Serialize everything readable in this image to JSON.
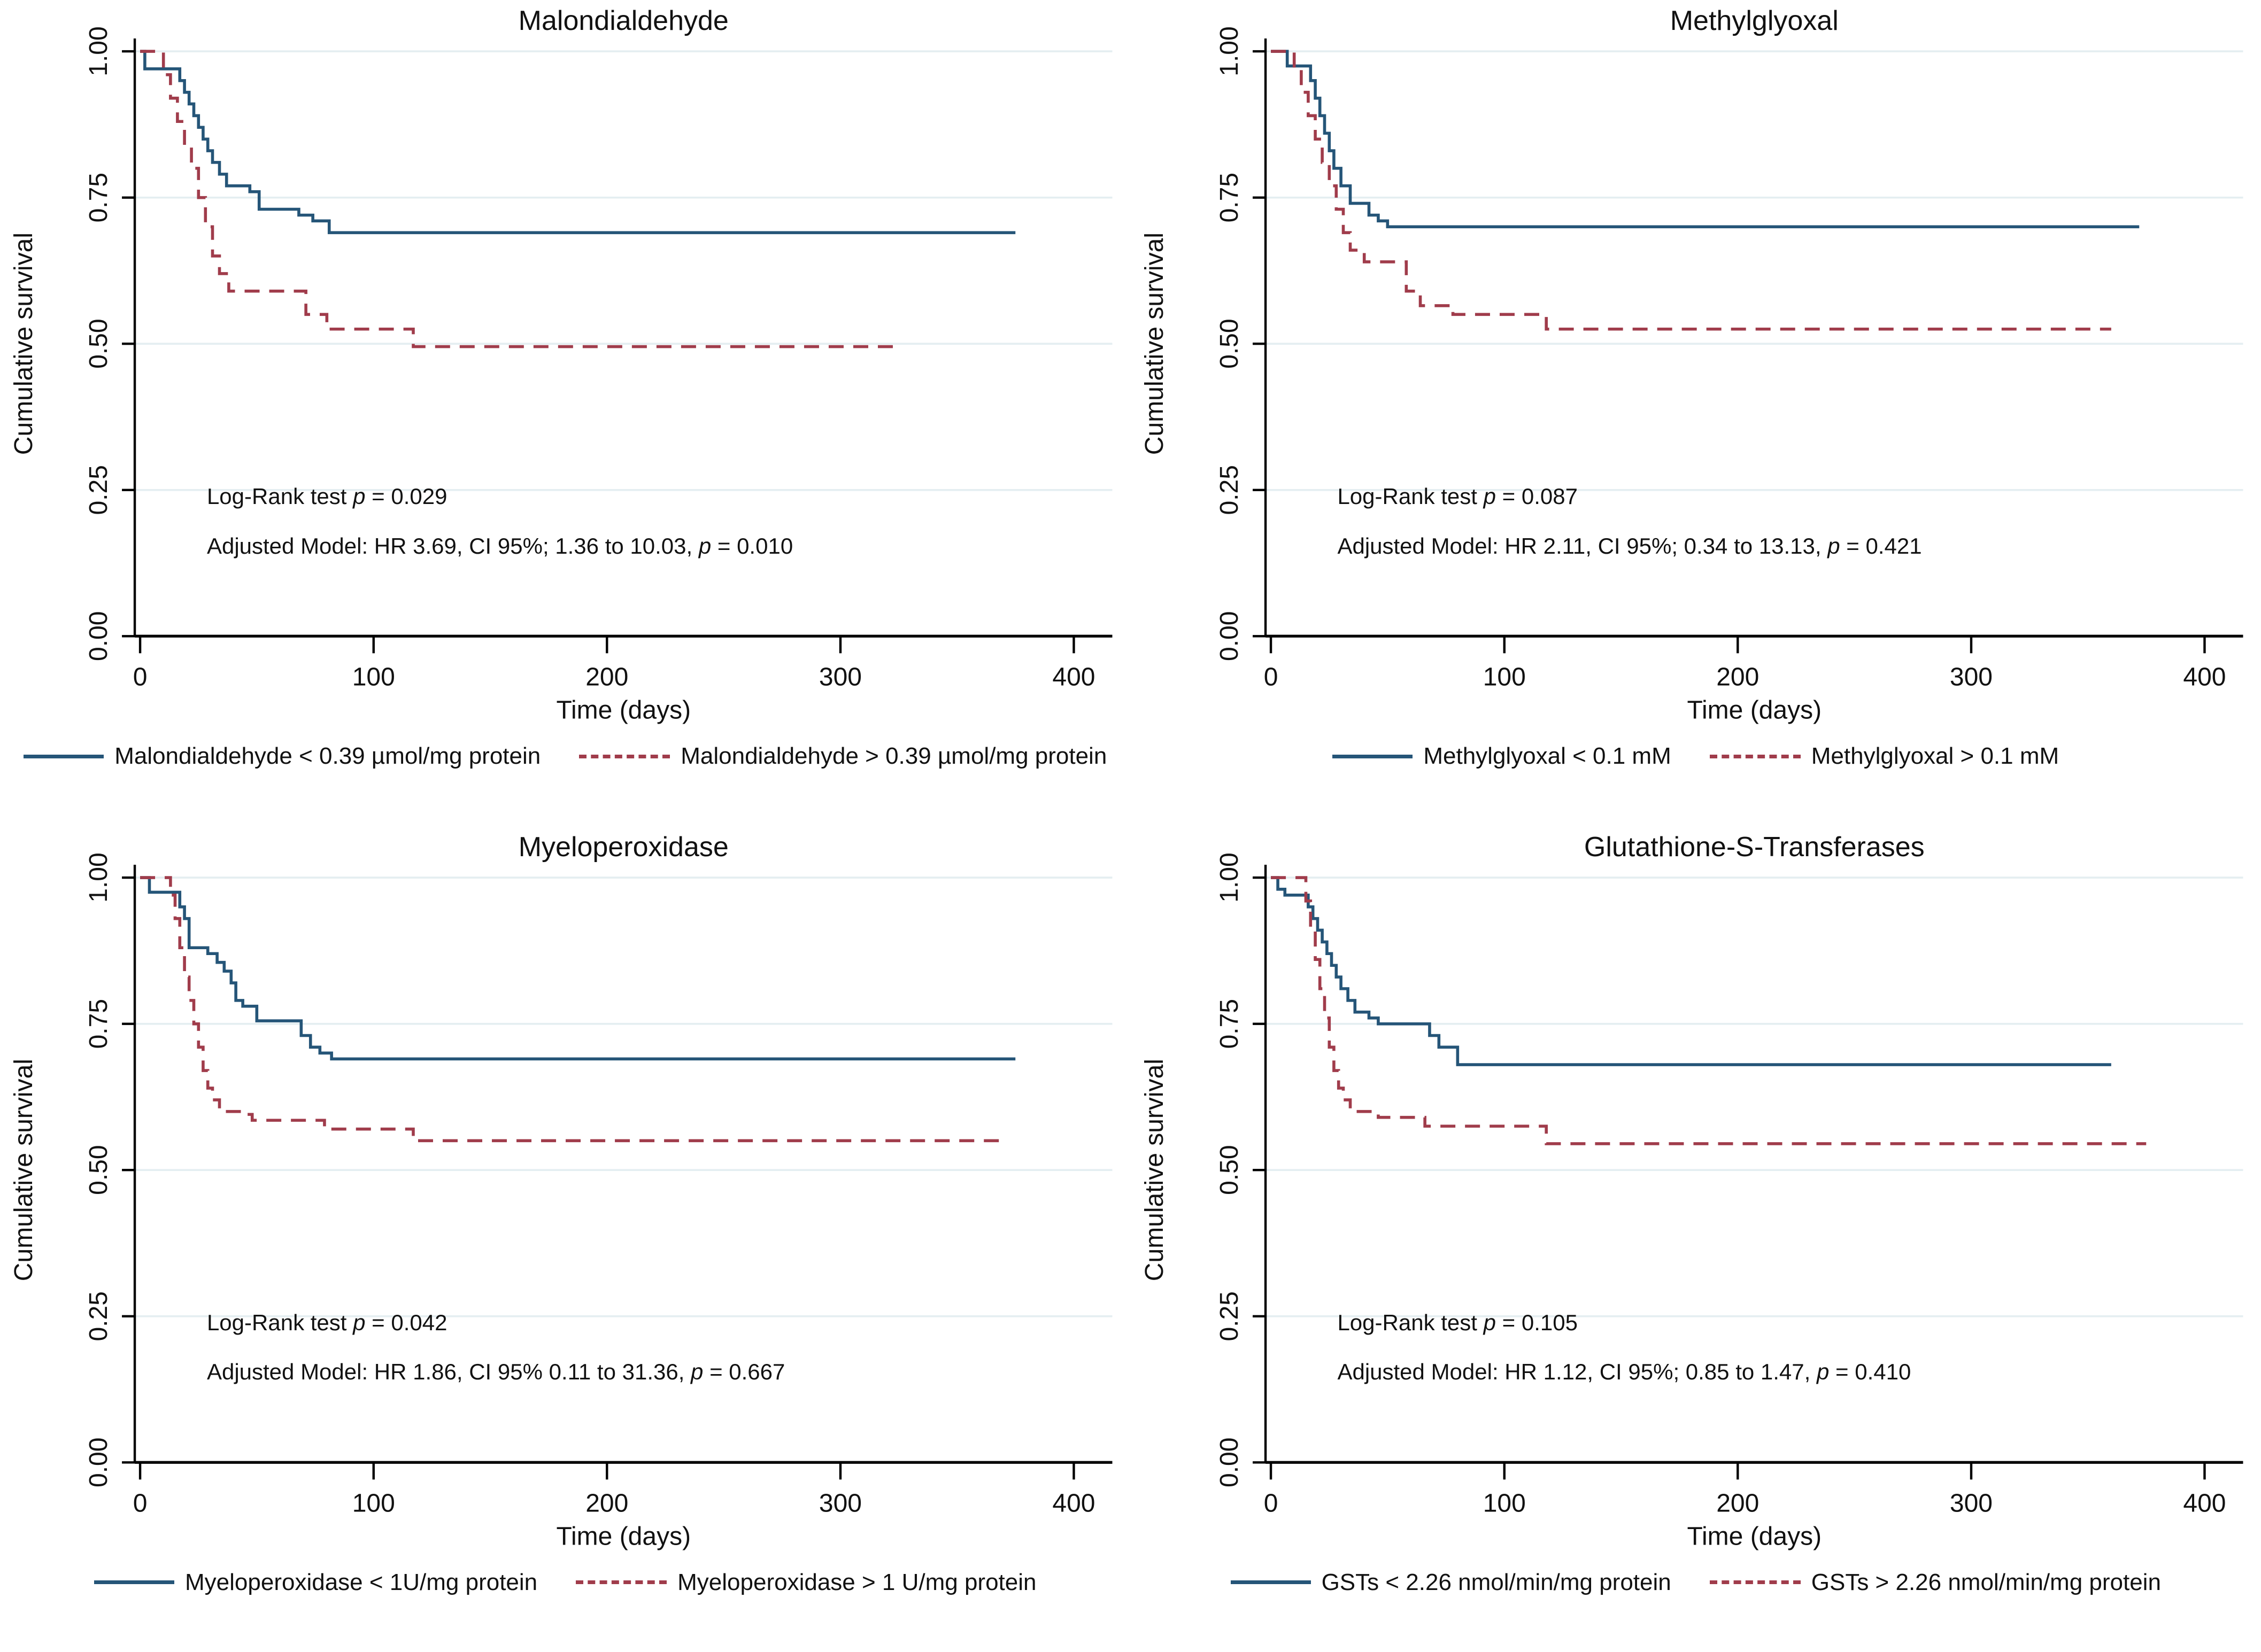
{
  "figure": {
    "colors": {
      "blue": "#255578",
      "red": "#A03C4B",
      "grid": "#E4EEF1",
      "axis": "#000000",
      "text": "#111111"
    }
  },
  "chart_data": [
    {
      "type": "line",
      "subtype": "kaplan-meier-step",
      "title": "Malondialdehyde",
      "xlabel": "Time (days)",
      "ylabel": "Cumulative survival",
      "xlim": [
        0,
        400
      ],
      "ylim": [
        0,
        1
      ],
      "xticks": [
        0,
        100,
        200,
        300,
        400
      ],
      "yticks": [
        "0.00",
        "0.25",
        "0.50",
        "0.75",
        "1.00"
      ],
      "grid": "horizontal",
      "legend_position": "bottom",
      "annotations": {
        "logrank": {
          "pre": "Log-Rank test ",
          "p": "p",
          "post": " = 0.029"
        },
        "model": {
          "pre": "Adjusted Model: HR 3.69, CI 95%; 1.36 to 10.03, ",
          "p": "p",
          "post": " = 0.010"
        }
      },
      "legend": [
        {
          "label": "Malondialdehyde < 0.39 µmol/mg protein",
          "style": "solid",
          "color": "blue"
        },
        {
          "label": "Malondialdehyde > 0.39 µmol/mg protein",
          "style": "dashed",
          "color": "red"
        }
      ],
      "series": [
        {
          "id": "below-cutoff",
          "name": "Malondialdehyde < 0.39 µmol/mg protein",
          "style": "solid",
          "color": "blue",
          "points": [
            [
              0,
              1.0
            ],
            [
              2,
              0.97
            ],
            [
              15,
              0.97
            ],
            [
              17,
              0.95
            ],
            [
              19,
              0.93
            ],
            [
              21,
              0.91
            ],
            [
              23,
              0.89
            ],
            [
              25,
              0.87
            ],
            [
              27,
              0.85
            ],
            [
              29,
              0.83
            ],
            [
              31,
              0.81
            ],
            [
              34,
              0.79
            ],
            [
              37,
              0.77
            ],
            [
              47,
              0.76
            ],
            [
              51,
              0.73
            ],
            [
              68,
              0.72
            ],
            [
              74,
              0.71
            ],
            [
              81,
              0.69
            ],
            [
              375,
              0.69
            ]
          ]
        },
        {
          "id": "above-cutoff",
          "name": "Malondialdehyde > 0.39 µmol/mg protein",
          "style": "dashed",
          "color": "red",
          "points": [
            [
              0,
              1.0
            ],
            [
              8,
              1.0
            ],
            [
              10,
              0.96
            ],
            [
              13,
              0.92
            ],
            [
              16,
              0.88
            ],
            [
              19,
              0.84
            ],
            [
              22,
              0.8
            ],
            [
              25,
              0.75
            ],
            [
              28,
              0.7
            ],
            [
              31,
              0.65
            ],
            [
              34,
              0.62
            ],
            [
              38,
              0.59
            ],
            [
              68,
              0.59
            ],
            [
              71,
              0.55
            ],
            [
              80,
              0.525
            ],
            [
              117,
              0.495
            ],
            [
              325,
              0.495
            ]
          ]
        }
      ]
    },
    {
      "type": "line",
      "subtype": "kaplan-meier-step",
      "title": "Methylglyoxal",
      "xlabel": "Time (days)",
      "ylabel": "Cumulative survival",
      "xlim": [
        0,
        400
      ],
      "ylim": [
        0,
        1
      ],
      "xticks": [
        0,
        100,
        200,
        300,
        400
      ],
      "yticks": [
        "0.00",
        "0.25",
        "0.50",
        "0.75",
        "1.00"
      ],
      "grid": "horizontal",
      "legend_position": "bottom",
      "annotations": {
        "logrank": {
          "pre": "Log-Rank test ",
          "p": "p",
          "post": " = 0.087"
        },
        "model": {
          "pre": "Adjusted Model: HR 2.11, CI 95%; 0.34 to 13.13, ",
          "p": "p",
          "post": " = 0.421"
        }
      },
      "legend": [
        {
          "label": "Methylglyoxal < 0.1 mM",
          "style": "solid",
          "color": "blue"
        },
        {
          "label": "Methylglyoxal > 0.1 mM",
          "style": "dashed",
          "color": "red"
        }
      ],
      "series": [
        {
          "id": "below-cutoff",
          "name": "Methylglyoxal < 0.1 mM",
          "style": "solid",
          "color": "blue",
          "points": [
            [
              0,
              1.0
            ],
            [
              6,
              1.0
            ],
            [
              7,
              0.975
            ],
            [
              15,
              0.975
            ],
            [
              17,
              0.95
            ],
            [
              19,
              0.92
            ],
            [
              21,
              0.89
            ],
            [
              23,
              0.86
            ],
            [
              25,
              0.83
            ],
            [
              27,
              0.8
            ],
            [
              30,
              0.77
            ],
            [
              34,
              0.74
            ],
            [
              42,
              0.72
            ],
            [
              46,
              0.71
            ],
            [
              50,
              0.7
            ],
            [
              372,
              0.7
            ]
          ]
        },
        {
          "id": "above-cutoff",
          "name": "Methylglyoxal > 0.1 mM",
          "style": "dashed",
          "color": "red",
          "points": [
            [
              0,
              1.0
            ],
            [
              8,
              1.0
            ],
            [
              10,
              0.97
            ],
            [
              13,
              0.93
            ],
            [
              16,
              0.89
            ],
            [
              19,
              0.85
            ],
            [
              22,
              0.81
            ],
            [
              25,
              0.77
            ],
            [
              28,
              0.73
            ],
            [
              31,
              0.69
            ],
            [
              34,
              0.66
            ],
            [
              40,
              0.64
            ],
            [
              58,
              0.59
            ],
            [
              64,
              0.565
            ],
            [
              78,
              0.55
            ],
            [
              118,
              0.525
            ],
            [
              360,
              0.525
            ]
          ]
        }
      ]
    },
    {
      "type": "line",
      "subtype": "kaplan-meier-step",
      "title": "Myeloperoxidase",
      "xlabel": "Time (days)",
      "ylabel": "Cumulative survival",
      "xlim": [
        0,
        400
      ],
      "ylim": [
        0,
        1
      ],
      "xticks": [
        0,
        100,
        200,
        300,
        400
      ],
      "yticks": [
        "0.00",
        "0.25",
        "0.50",
        "0.75",
        "1.00"
      ],
      "grid": "horizontal",
      "legend_position": "bottom",
      "annotations": {
        "logrank": {
          "pre": "Log-Rank test ",
          "p": "p",
          "post": " = 0.042"
        },
        "model": {
          "pre": "Adjusted Model: HR 1.86, CI 95% 0.11 to 31.36, ",
          "p": "p",
          "post": " = 0.667"
        }
      },
      "legend": [
        {
          "label": "Myeloperoxidase < 1U/mg protein",
          "style": "solid",
          "color": "blue"
        },
        {
          "label": "Myeloperoxidase > 1 U/mg protein",
          "style": "dashed",
          "color": "red"
        }
      ],
      "series": [
        {
          "id": "below-cutoff",
          "name": "Myeloperoxidase < 1U/mg protein",
          "style": "solid",
          "color": "blue",
          "points": [
            [
              0,
              1.0
            ],
            [
              4,
              0.975
            ],
            [
              15,
              0.975
            ],
            [
              17,
              0.95
            ],
            [
              19,
              0.93
            ],
            [
              21,
              0.88
            ],
            [
              29,
              0.87
            ],
            [
              33,
              0.855
            ],
            [
              36,
              0.84
            ],
            [
              39,
              0.82
            ],
            [
              41,
              0.79
            ],
            [
              44,
              0.78
            ],
            [
              50,
              0.755
            ],
            [
              67,
              0.755
            ],
            [
              69,
              0.73
            ],
            [
              73,
              0.71
            ],
            [
              77,
              0.7
            ],
            [
              82,
              0.69
            ],
            [
              375,
              0.69
            ]
          ]
        },
        {
          "id": "above-cutoff",
          "name": "Myeloperoxidase > 1 U/mg protein",
          "style": "dashed",
          "color": "red",
          "points": [
            [
              0,
              1.0
            ],
            [
              12,
              1.0
            ],
            [
              13,
              0.97
            ],
            [
              15,
              0.93
            ],
            [
              17,
              0.88
            ],
            [
              19,
              0.83
            ],
            [
              21,
              0.79
            ],
            [
              23,
              0.75
            ],
            [
              25,
              0.71
            ],
            [
              27,
              0.67
            ],
            [
              29,
              0.64
            ],
            [
              31,
              0.62
            ],
            [
              34,
              0.6
            ],
            [
              45,
              0.595
            ],
            [
              48,
              0.585
            ],
            [
              79,
              0.57
            ],
            [
              117,
              0.55
            ],
            [
              368,
              0.55
            ]
          ]
        }
      ]
    },
    {
      "type": "line",
      "subtype": "kaplan-meier-step",
      "title": "Glutathione-S-Transferases",
      "xlabel": "Time (days)",
      "ylabel": "Cumulative survival",
      "xlim": [
        0,
        400
      ],
      "ylim": [
        0,
        1
      ],
      "xticks": [
        0,
        100,
        200,
        300,
        400
      ],
      "yticks": [
        "0.00",
        "0.25",
        "0.50",
        "0.75",
        "1.00"
      ],
      "grid": "horizontal",
      "legend_position": "bottom",
      "annotations": {
        "logrank": {
          "pre": "Log-Rank test ",
          "p": "p",
          "post": " = 0.105"
        },
        "model": {
          "pre": "Adjusted Model: HR 1.12, CI 95%; 0.85 to 1.47, ",
          "p": "p",
          "post": " = 0.410"
        }
      },
      "legend": [
        {
          "label": "GSTs < 2.26 nmol/min/mg protein",
          "style": "solid",
          "color": "blue"
        },
        {
          "label": "GSTs > 2.26 nmol/min/mg protein",
          "style": "dashed",
          "color": "red"
        }
      ],
      "series": [
        {
          "id": "below-cutoff",
          "name": "GSTs < 2.26 nmol/min/mg protein",
          "style": "solid",
          "color": "blue",
          "points": [
            [
              0,
              1.0
            ],
            [
              3,
              0.98
            ],
            [
              6,
              0.97
            ],
            [
              14,
              0.97
            ],
            [
              16,
              0.95
            ],
            [
              18,
              0.93
            ],
            [
              20,
              0.91
            ],
            [
              22,
              0.89
            ],
            [
              24,
              0.87
            ],
            [
              26,
              0.85
            ],
            [
              28,
              0.83
            ],
            [
              30,
              0.81
            ],
            [
              33,
              0.79
            ],
            [
              36,
              0.77
            ],
            [
              42,
              0.76
            ],
            [
              46,
              0.75
            ],
            [
              65,
              0.75
            ],
            [
              68,
              0.73
            ],
            [
              72,
              0.71
            ],
            [
              80,
              0.68
            ],
            [
              360,
              0.68
            ]
          ]
        },
        {
          "id": "above-cutoff",
          "name": "GSTs > 2.26 nmol/min/mg protein",
          "style": "dashed",
          "color": "red",
          "points": [
            [
              0,
              1.0
            ],
            [
              13,
              1.0
            ],
            [
              15,
              0.96
            ],
            [
              17,
              0.91
            ],
            [
              19,
              0.86
            ],
            [
              21,
              0.81
            ],
            [
              23,
              0.76
            ],
            [
              25,
              0.71
            ],
            [
              27,
              0.67
            ],
            [
              29,
              0.64
            ],
            [
              31,
              0.62
            ],
            [
              34,
              0.6
            ],
            [
              46,
              0.59
            ],
            [
              66,
              0.575
            ],
            [
              118,
              0.545
            ],
            [
              375,
              0.545
            ]
          ]
        }
      ]
    }
  ]
}
